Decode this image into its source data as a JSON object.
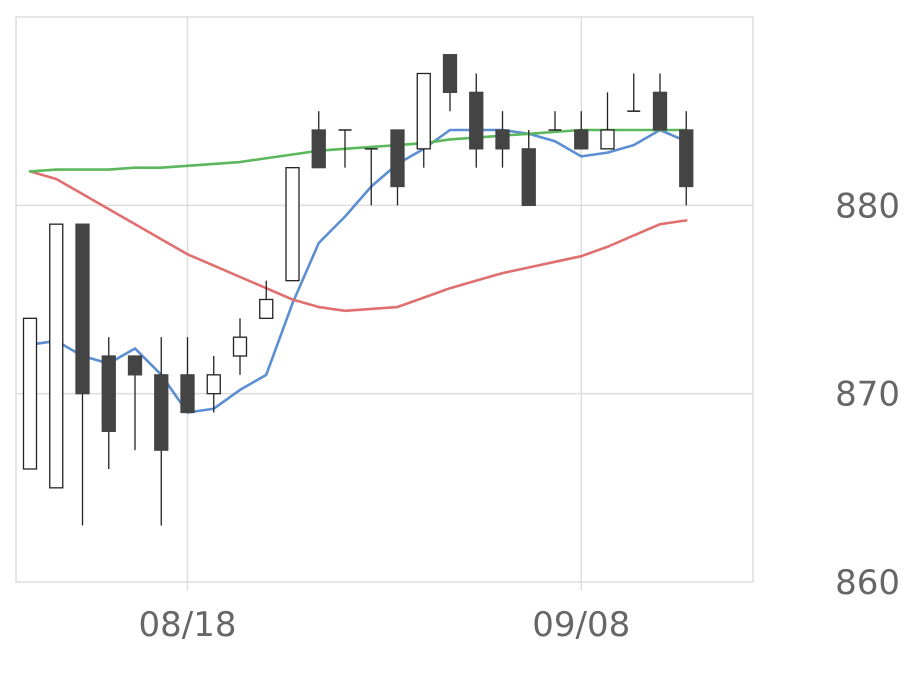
{
  "chart_data": {
    "type": "candlestick",
    "title": "",
    "xlabel": "",
    "ylabel": "",
    "ylim": [
      860,
      890
    ],
    "y_ticks": [
      "880",
      "870",
      "860"
    ],
    "x_ticks": [
      {
        "index": 6,
        "label": "08/18"
      },
      {
        "index": 21,
        "label": "09/08"
      }
    ],
    "grid": true,
    "colors": {
      "down_fill": "#444444",
      "up_fill": "#ffffff",
      "wick": "#222222",
      "grid": "#dddddd",
      "ma_short": "#5b8fd1",
      "ma_mid": "#e07070",
      "ma_long": "#5cb85c"
    },
    "candles": [
      {
        "o": 866,
        "h": 874,
        "l": 866,
        "c": 874
      },
      {
        "o": 865,
        "h": 879,
        "l": 865,
        "c": 879
      },
      {
        "o": 879,
        "h": 879,
        "l": 863,
        "c": 870
      },
      {
        "o": 872,
        "h": 873,
        "l": 866,
        "c": 868
      },
      {
        "o": 872,
        "h": 872,
        "l": 867,
        "c": 871
      },
      {
        "o": 871,
        "h": 873,
        "l": 863,
        "c": 867
      },
      {
        "o": 871,
        "h": 873,
        "l": 869,
        "c": 869
      },
      {
        "o": 870,
        "h": 872,
        "l": 869,
        "c": 871
      },
      {
        "o": 872,
        "h": 874,
        "l": 871,
        "c": 873
      },
      {
        "o": 874,
        "h": 876,
        "l": 874,
        "c": 875
      },
      {
        "o": 876,
        "h": 882,
        "l": 876,
        "c": 882
      },
      {
        "o": 884,
        "h": 885,
        "l": 882,
        "c": 882
      },
      {
        "o": 884,
        "h": 884,
        "l": 882,
        "c": 884
      },
      {
        "o": 883,
        "h": 883,
        "l": 880,
        "c": 883
      },
      {
        "o": 884,
        "h": 884,
        "l": 880,
        "c": 881
      },
      {
        "o": 883,
        "h": 887,
        "l": 882,
        "c": 887
      },
      {
        "o": 888,
        "h": 888,
        "l": 885,
        "c": 886
      },
      {
        "o": 886,
        "h": 887,
        "l": 882,
        "c": 883
      },
      {
        "o": 884,
        "h": 885,
        "l": 882,
        "c": 883
      },
      {
        "o": 883,
        "h": 884,
        "l": 880,
        "c": 880
      },
      {
        "o": 884,
        "h": 885,
        "l": 884,
        "c": 884
      },
      {
        "o": 884,
        "h": 885,
        "l": 883,
        "c": 883
      },
      {
        "o": 883,
        "h": 886,
        "l": 883,
        "c": 884
      },
      {
        "o": 885,
        "h": 887,
        "l": 885,
        "c": 885
      },
      {
        "o": 886,
        "h": 887,
        "l": 884,
        "c": 884
      },
      {
        "o": 884,
        "h": 885,
        "l": 880,
        "c": 881
      }
    ],
    "series": [
      {
        "key": "ma_short",
        "values": [
          872.6,
          872.8,
          872.0,
          871.6,
          872.4,
          871.0,
          869.0,
          869.2,
          870.2,
          871.0,
          874.8,
          878.0,
          879.4,
          881.0,
          882.2,
          883.0,
          884.0,
          884.0,
          884.0,
          883.8,
          883.4,
          882.6,
          882.8,
          883.2,
          884.0,
          883.4
        ]
      },
      {
        "key": "ma_mid",
        "values": [
          881.8,
          881.4,
          880.6,
          879.8,
          879.0,
          878.2,
          877.4,
          876.8,
          876.2,
          875.6,
          875.0,
          874.6,
          874.4,
          874.5,
          874.6,
          875.1,
          875.6,
          876.0,
          876.4,
          876.7,
          877.0,
          877.3,
          877.8,
          878.4,
          879.0,
          879.2
        ]
      },
      {
        "key": "ma_long",
        "values": [
          881.8,
          881.9,
          881.9,
          881.9,
          882.0,
          882.0,
          882.1,
          882.2,
          882.3,
          882.5,
          882.7,
          882.9,
          883.0,
          883.1,
          883.2,
          883.3,
          883.5,
          883.6,
          883.7,
          883.8,
          883.9,
          884.0,
          884.0,
          884.0,
          884.0,
          884.0
        ]
      }
    ]
  }
}
